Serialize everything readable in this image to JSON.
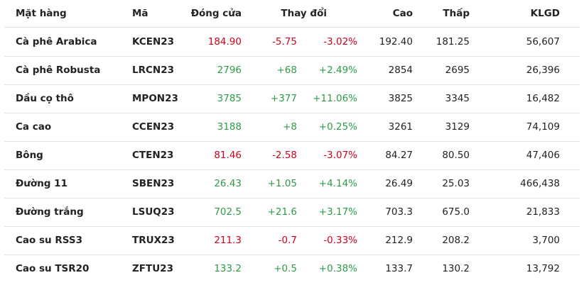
{
  "table": {
    "headers": [
      "Mặt hàng",
      "Mã",
      "Đóng cửa",
      "Thay đổi",
      "Cao",
      "Thấp",
      "KLGD"
    ],
    "rows": [
      {
        "color": "#d0021b",
        "cells": [
          "Cà phê Arabica",
          "KCEN23",
          "184.90",
          "-5.75",
          "-3.02%",
          "192.40",
          "181.25",
          "56,607"
        ]
      },
      {
        "color": "#2e9c47",
        "cells": [
          "Cà phê Robusta",
          "LRCN23",
          "2796",
          "+68",
          "+2.49%",
          "2854",
          "2695",
          "26,396"
        ]
      },
      {
        "color": "#2e9c47",
        "cells": [
          "Dầu cọ thô",
          "MPON23",
          "3785",
          "+377",
          "+11.06%",
          "3825",
          "3345",
          "16,482"
        ]
      },
      {
        "color": "#2e9c47",
        "cells": [
          "Ca cao",
          "CCEN23",
          "3188",
          "+8",
          "+0.25%",
          "3261",
          "3129",
          "74,109"
        ]
      },
      {
        "color": "#d0021b",
        "cells": [
          "Bông",
          "CTEN23",
          "81.46",
          "-2.58",
          "-3.07%",
          "84.27",
          "80.50",
          "47,406"
        ]
      },
      {
        "color": "#2e9c47",
        "cells": [
          "Đường 11",
          "SBEN23",
          "26.43",
          "+1.05",
          "+4.14%",
          "26.49",
          "25.03",
          "466,438"
        ]
      },
      {
        "color": "#2e9c47",
        "cells": [
          "Đường trắng",
          "LSUQ23",
          "702.5",
          "+21.6",
          "+3.17%",
          "703.3",
          "675.0",
          "21,833"
        ]
      },
      {
        "color": "#d0021b",
        "cells": [
          "Cao su RSS3",
          "TRUX23",
          "211.3",
          "-0.7",
          "-0.33%",
          "212.9",
          "208.2",
          "3,700"
        ]
      },
      {
        "color": "#2e9c47",
        "cells": [
          "Cao su TSR20",
          "ZFTU23",
          "133.2",
          "+0.5",
          "+0.38%",
          "133.7",
          "130.2",
          "13,792"
        ]
      }
    ]
  }
}
